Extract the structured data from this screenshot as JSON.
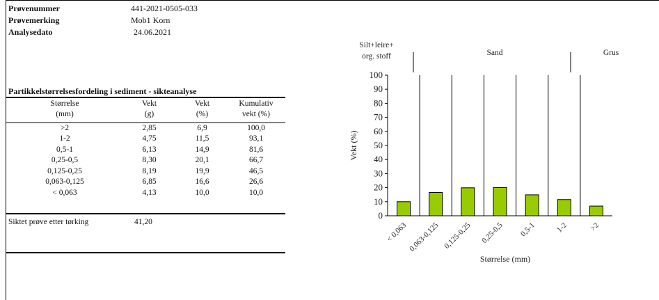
{
  "meta": [
    {
      "label": "Prøvenummer",
      "value": "441-2021-0505-033"
    },
    {
      "label": "Prøvemerking",
      "value": "Mob1 Korn"
    },
    {
      "label": "Analysedato",
      "value": "24.06.2021"
    }
  ],
  "table": {
    "title": "Partikkelstørrelsesfordeling i sediment - sikteanalyse",
    "headers": [
      [
        "Størrelse",
        "(mm)"
      ],
      [
        "Vekt",
        "(g)"
      ],
      [
        "Vekt",
        "(%)"
      ],
      [
        "Kumulativ",
        "vekt (%)"
      ]
    ],
    "rows": [
      [
        ">2",
        "2,85",
        "6,9",
        "100,0"
      ],
      [
        "1-2",
        "4,75",
        "11,5",
        "93,1"
      ],
      [
        "0,5-1",
        "6,13",
        "14,9",
        "81,6"
      ],
      [
        "0,25-0,5",
        "8,30",
        "20,1",
        "66,7"
      ],
      [
        "0,125-0,25",
        "8,19",
        "19,9",
        "46,5"
      ],
      [
        "0,063-0,125",
        "6,85",
        "16,6",
        "26,6"
      ],
      [
        "< 0,063",
        "4,13",
        "10,0",
        "10,0"
      ]
    ],
    "total_label": "Siktet prøve etter tørking",
    "total_value": "41,20"
  },
  "chart_data": {
    "type": "bar",
    "categories": [
      "< 0,063",
      "0,063-0,125",
      "0,125-0,25",
      "0,25-0,5",
      "0,5-1",
      "1-2",
      ">2"
    ],
    "values": [
      10.0,
      16.6,
      19.9,
      20.1,
      14.9,
      11.5,
      6.9
    ],
    "xlabel": "Størrelse (mm)",
    "ylabel": "Vekt (%)",
    "ylim": [
      0,
      100
    ],
    "yticks": [
      0,
      10,
      20,
      30,
      40,
      50,
      60,
      70,
      80,
      90,
      100
    ],
    "grid": false,
    "bar_color": "#99cc00",
    "zones": [
      "Silt+leire+ org. stoff",
      "Sand",
      "Grus"
    ]
  }
}
